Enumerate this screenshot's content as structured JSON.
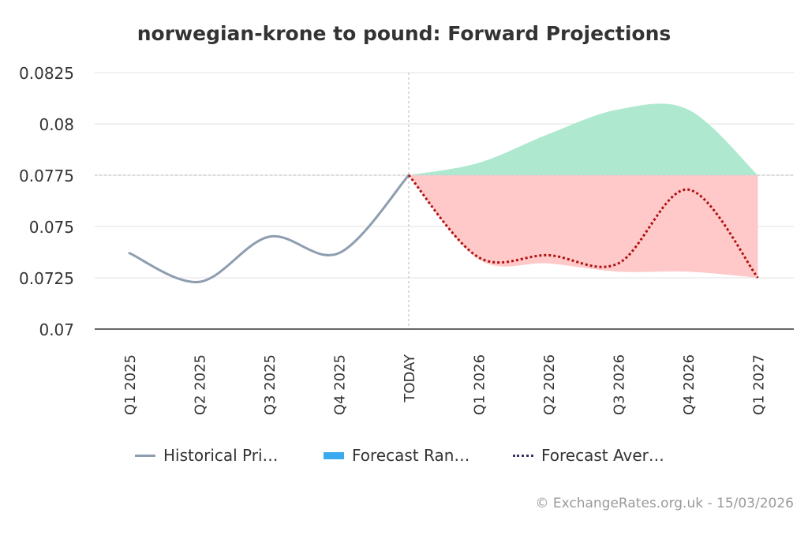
{
  "title": "norwegian-krone to pound: Forward Projections",
  "credit": "© ExchangeRates.org.uk - 15/03/2026",
  "colors": {
    "historical": "#8e9db0",
    "forecast_range_legend": "#3aaaf0",
    "forecast_avg": "#b01010",
    "forecast_avg_legend": "#3a3560",
    "band_above": "#aee9cf",
    "band_below": "#ffc9c9",
    "grid": "#e0e0e0",
    "axis": "#333333"
  },
  "legend": [
    {
      "key": "historical",
      "label": "Historical Pri…"
    },
    {
      "key": "range",
      "label": "Forecast Ran…"
    },
    {
      "key": "average",
      "label": "Forecast Aver…"
    }
  ],
  "chart_data": {
    "type": "line",
    "title": "norwegian-krone to pound: Forward Projections",
    "categories": [
      "Q1 2025",
      "Q2 2025",
      "Q3 2025",
      "Q4 2025",
      "TODAY",
      "Q1 2026",
      "Q2 2026",
      "Q3 2026",
      "Q4 2026",
      "Q1 2027"
    ],
    "ylim": [
      0.07,
      0.0825
    ],
    "yticks": [
      0.07,
      0.0725,
      0.075,
      0.0775,
      0.08,
      0.0825
    ],
    "ytick_labels": [
      "0.07",
      "0.0725",
      "0.075",
      "0.0775",
      "0.08",
      "0.0825"
    ],
    "grid": true,
    "legend_position": "bottom",
    "reference_line": {
      "category": "TODAY",
      "value": 0.0775
    },
    "series": [
      {
        "name": "Historical Price",
        "kind": "line",
        "values": [
          0.0737,
          0.0723,
          0.0745,
          0.0737,
          0.0775,
          null,
          null,
          null,
          null,
          null
        ]
      },
      {
        "name": "Forecast Range",
        "kind": "range",
        "upper": [
          null,
          null,
          null,
          null,
          0.0775,
          0.0781,
          0.0795,
          0.0807,
          0.0807,
          0.0775
        ],
        "lower": [
          null,
          null,
          null,
          null,
          0.0775,
          0.0734,
          0.0732,
          0.0728,
          0.0728,
          0.0725
        ]
      },
      {
        "name": "Forecast Average",
        "kind": "dotted-line",
        "values": [
          null,
          null,
          null,
          null,
          0.0775,
          0.0735,
          0.0736,
          0.0732,
          0.0768,
          0.0725
        ]
      }
    ]
  }
}
